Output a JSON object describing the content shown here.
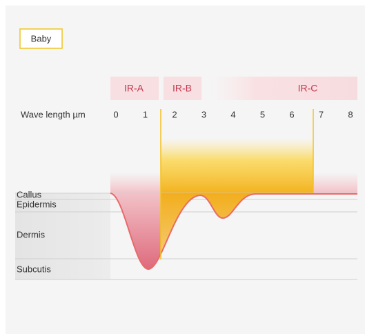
{
  "badge": "Baby",
  "bands": [
    "IR-A",
    "IR-B",
    "IR-C"
  ],
  "scale": {
    "label": "Wave length µm",
    "ticks": [
      0,
      1,
      2,
      3,
      4,
      5,
      6,
      7,
      8
    ]
  },
  "layers": [
    "Callus",
    "Epidermis",
    "Dermis",
    "Subcutis"
  ]
}
